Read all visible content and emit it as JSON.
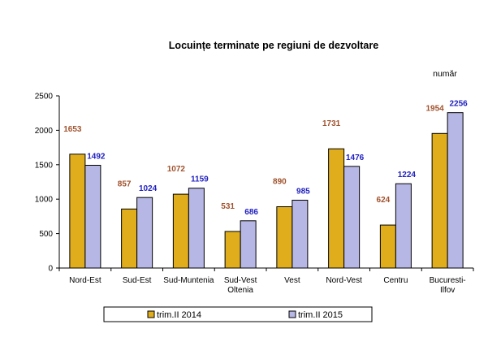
{
  "chart_data": {
    "type": "bar",
    "title": "Locuințe terminate pe regiuni de dezvoltare",
    "unit_label": "număr",
    "categories": [
      [
        "Nord-Est"
      ],
      [
        "Sud-Est"
      ],
      [
        "Sud-Muntenia"
      ],
      [
        "Sud-Vest",
        "Oltenia"
      ],
      [
        "Vest"
      ],
      [
        "Nord-Vest"
      ],
      [
        "Centru"
      ],
      [
        "Bucuresti-",
        "Ilfov"
      ]
    ],
    "series": [
      {
        "name": "trim.II 2014",
        "values": [
          1653,
          857,
          1072,
          531,
          890,
          1731,
          624,
          1954
        ],
        "color": "#E0AE1C",
        "label_color": "#A0522D"
      },
      {
        "name": "trim.II 2015",
        "values": [
          1492,
          1024,
          1159,
          686,
          985,
          1476,
          1224,
          2256
        ],
        "color": "#B7B7E6",
        "label_color": "#2020C0"
      }
    ],
    "ylim": [
      0,
      2500
    ],
    "yticks": [
      0,
      500,
      1000,
      1500,
      2000,
      2500
    ],
    "grid": false,
    "legend": "bottom"
  }
}
